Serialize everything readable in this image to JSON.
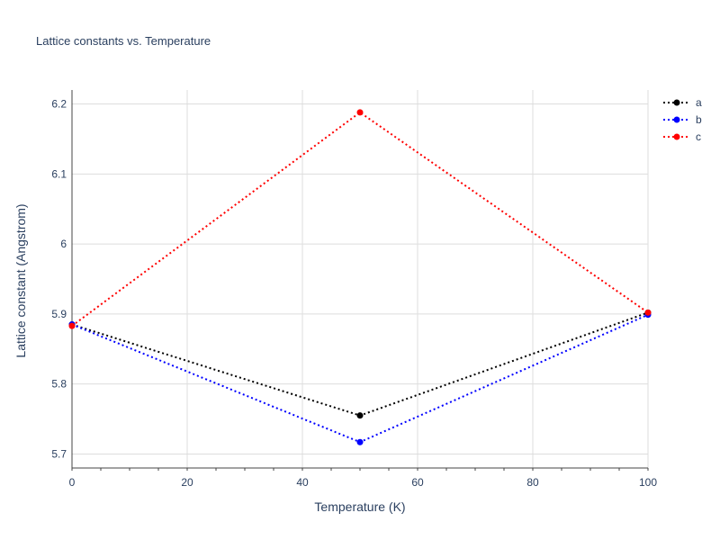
{
  "chart_data": {
    "type": "line",
    "title": "Lattice constants vs. Temperature",
    "xlabel": "Temperature (K)",
    "ylabel": "Lattice constant (Angstrom)",
    "xlim": [
      0,
      100
    ],
    "ylim": [
      5.68,
      6.22
    ],
    "x_ticks": [
      0,
      20,
      40,
      60,
      80,
      100
    ],
    "y_ticks": [
      5.7,
      5.8,
      5.9,
      6.0,
      6.1,
      6.2
    ],
    "x_tick_labels": [
      "0",
      "20",
      "40",
      "60",
      "80",
      "100"
    ],
    "y_tick_labels": [
      "5.7",
      "5.8",
      "5.9",
      "6",
      "6.1",
      "6.2"
    ],
    "grid": true,
    "legend_position": "top-right",
    "line_style": "dotted",
    "x": [
      0,
      50,
      100
    ],
    "series": [
      {
        "name": "a",
        "color": "#000000",
        "values": [
          5.885,
          5.755,
          5.902
        ]
      },
      {
        "name": "b",
        "color": "#0000ff",
        "values": [
          5.885,
          5.717,
          5.899
        ]
      },
      {
        "name": "c",
        "color": "#ff0000",
        "values": [
          5.883,
          6.188,
          5.902
        ]
      }
    ]
  }
}
